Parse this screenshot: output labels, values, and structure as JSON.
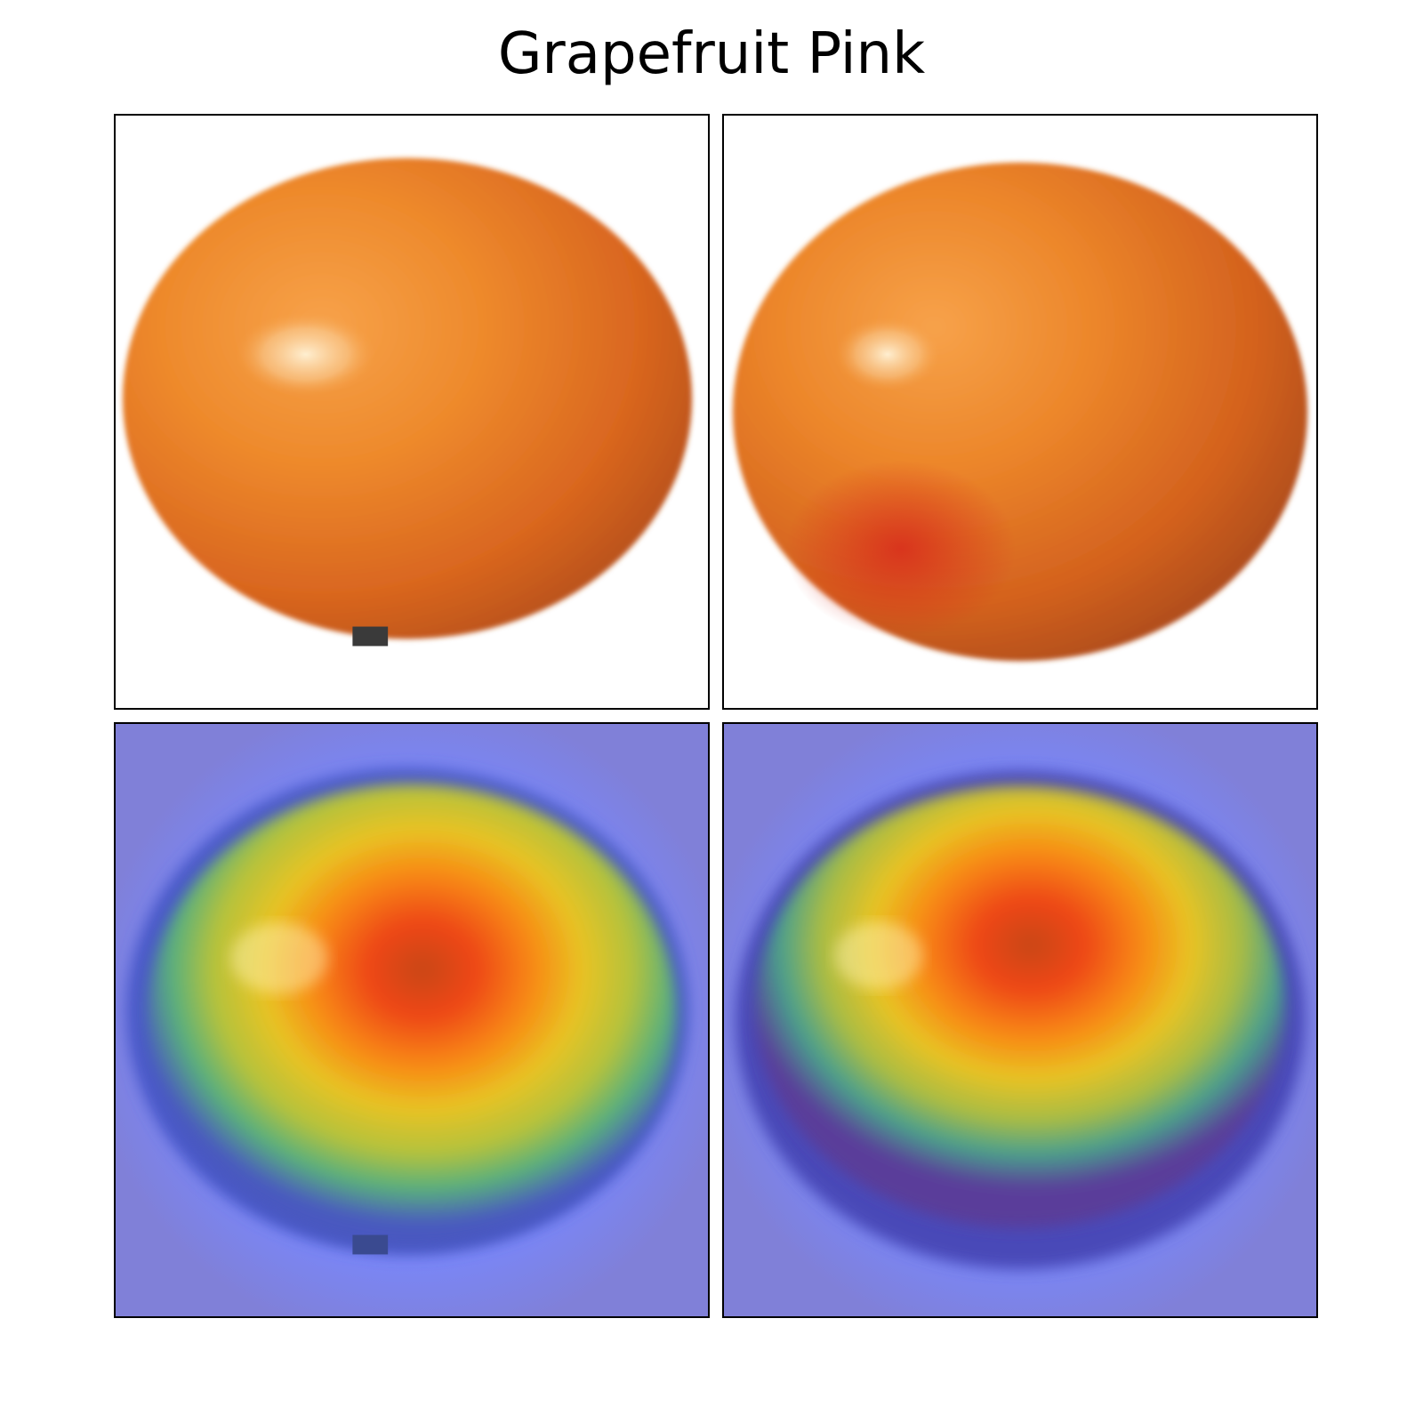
{
  "figure": {
    "title": "Grapefruit Pink"
  },
  "panels": [
    {
      "id": "original-1",
      "kind": "photo",
      "subject": "orange-fruit"
    },
    {
      "id": "original-2",
      "kind": "photo",
      "subject": "orange-fruit"
    },
    {
      "id": "heatmap-1",
      "kind": "saliency-overlay",
      "subject": "orange-fruit"
    },
    {
      "id": "heatmap-2",
      "kind": "saliency-overlay",
      "subject": "orange-fruit"
    }
  ],
  "colors": {
    "fruit_light": "#f5922e",
    "fruit_mid": "#e0701f",
    "fruit_dark": "#a6441c",
    "fruit_red": "#d8301f",
    "heat_background": "#7f80e0",
    "heat_blue": "#6070f0",
    "heat_green": "#70c070",
    "heat_yellow": "#e8c020",
    "heat_orange": "#f08010",
    "heat_red": "#e03010"
  }
}
